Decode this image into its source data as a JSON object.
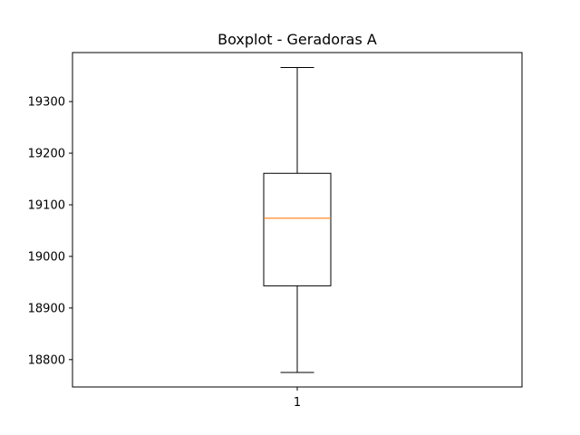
{
  "chart_data": {
    "type": "boxplot",
    "title": "Boxplot - Geradoras A",
    "xlabel": "",
    "ylabel": "",
    "categories": [
      "1"
    ],
    "boxes": [
      {
        "category": "1",
        "whisker_low": 18775,
        "q1": 18943,
        "median": 19074,
        "q3": 19161,
        "whisker_high": 19366
      }
    ],
    "yticks": [
      18800,
      18900,
      19000,
      19100,
      19200,
      19300
    ],
    "ytick_labels": [
      "18800",
      "18900",
      "19000",
      "19100",
      "19200",
      "19300"
    ],
    "ylim": [
      18747,
      19395
    ],
    "grid": false,
    "colors": {
      "box": "#000000",
      "median": "#ff7f0e"
    }
  }
}
